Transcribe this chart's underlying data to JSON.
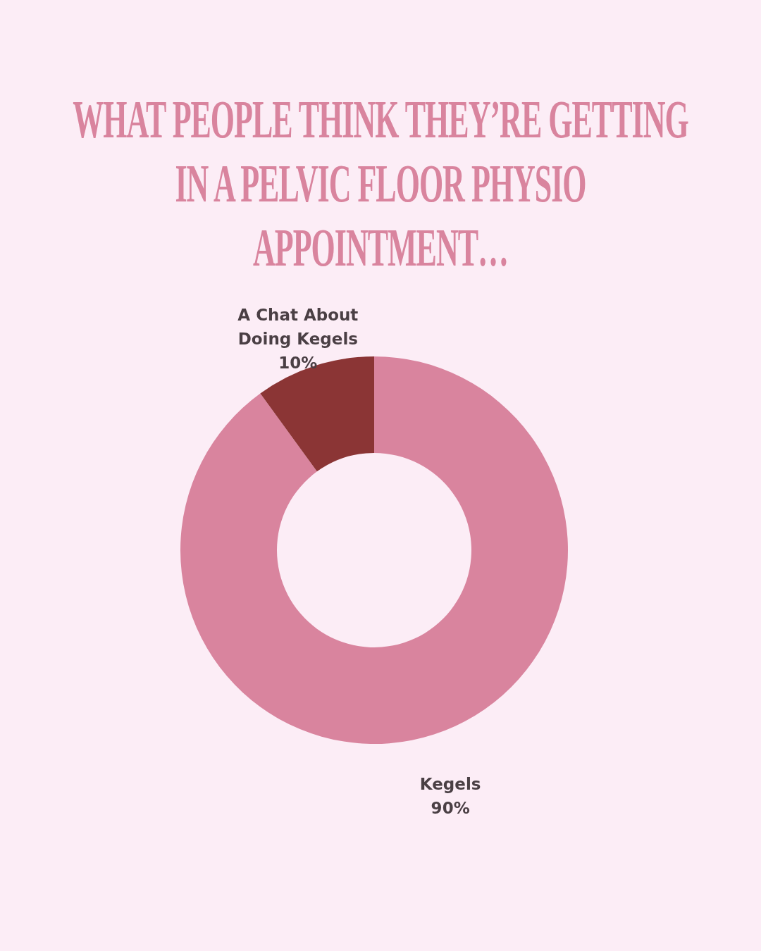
{
  "chart_data": {
    "type": "donut",
    "title": "WHAT PEOPLE THINK THEY’RE GETTING IN A PELVIC FLOOR PHYSIO APPOINTMENT…",
    "categories": [
      "Kegels",
      "A Chat About Doing Kegels"
    ],
    "values": [
      90,
      10
    ],
    "colors": [
      "#d9849e",
      "#8b3535"
    ],
    "value_labels": [
      "90%",
      "10%"
    ]
  }
}
